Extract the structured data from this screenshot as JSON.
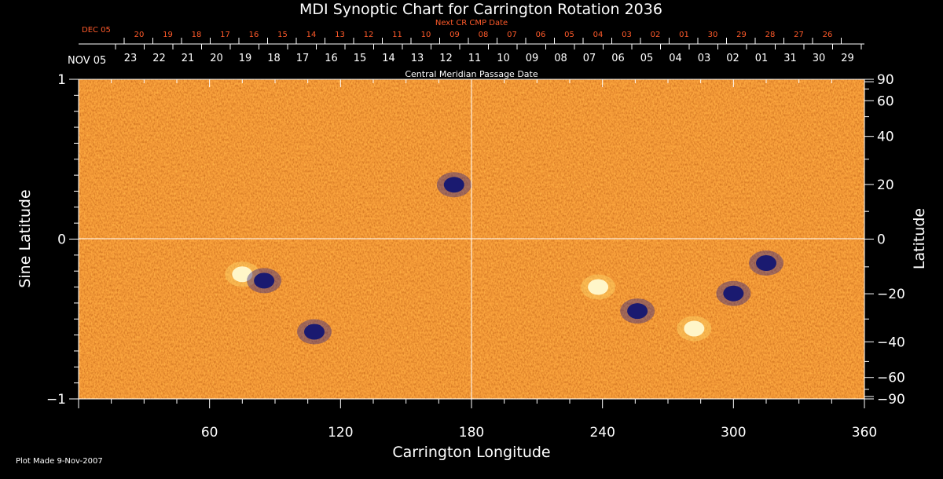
{
  "chart_data": {
    "type": "heatmap",
    "title": "MDI Synoptic Chart for Carrington Rotation 2036",
    "xlabel": "Carrington Longitude",
    "ylabel_left": "Sine Latitude",
    "ylabel_right": "Latitude",
    "xlim": [
      0,
      360
    ],
    "ylim": [
      -1,
      1
    ],
    "x_ticks": [
      60,
      120,
      180,
      240,
      300,
      360
    ],
    "y_ticks_left": [
      -1,
      0,
      1
    ],
    "y_ticks_left_labels": [
      "−1",
      "0",
      "1"
    ],
    "y_ticks_right": [
      90,
      60,
      40,
      20,
      0,
      -20,
      -40,
      -60,
      -90
    ],
    "y_ticks_right_labels": [
      "90",
      "60",
      "40",
      "20",
      "0",
      "−20",
      "−40",
      "−60",
      "−90"
    ],
    "cmp_axis_label": "Central Meridian Passage Date",
    "cmp_start_label": "NOV 05",
    "cmp_dates": [
      "23",
      "22",
      "21",
      "20",
      "19",
      "18",
      "17",
      "16",
      "15",
      "14",
      "13",
      "12",
      "11",
      "10",
      "09",
      "08",
      "07",
      "06",
      "05",
      "04",
      "03",
      "02",
      "01",
      "31",
      "30",
      "29"
    ],
    "next_cr_label": "Next CR CMP Date",
    "next_cr_start_label": "DEC 05",
    "next_cr_dates": [
      "20",
      "19",
      "18",
      "17",
      "16",
      "15",
      "14",
      "13",
      "12",
      "11",
      "10",
      "09",
      "08",
      "07",
      "06",
      "05",
      "04",
      "03",
      "02",
      "01",
      "30",
      "29",
      "28",
      "27",
      "26"
    ],
    "plot_made": "Plot Made  9-Nov-2007",
    "colors": {
      "field_base": "#e8541a",
      "positive": "#fff6c8",
      "negative": "#1a1a70",
      "text": "#ffffff",
      "next_cr": "#ff5a2a"
    },
    "active_regions": [
      {
        "lon": 75,
        "sinlat": -0.22,
        "polarity": "positive"
      },
      {
        "lon": 85,
        "sinlat": -0.26,
        "polarity": "negative"
      },
      {
        "lon": 108,
        "sinlat": -0.58,
        "polarity": "negative"
      },
      {
        "lon": 172,
        "sinlat": 0.34,
        "polarity": "negative"
      },
      {
        "lon": 238,
        "sinlat": -0.3,
        "polarity": "positive"
      },
      {
        "lon": 256,
        "sinlat": -0.45,
        "polarity": "negative"
      },
      {
        "lon": 282,
        "sinlat": -0.56,
        "polarity": "positive"
      },
      {
        "lon": 300,
        "sinlat": -0.34,
        "polarity": "negative"
      },
      {
        "lon": 315,
        "sinlat": -0.15,
        "polarity": "negative"
      }
    ]
  }
}
